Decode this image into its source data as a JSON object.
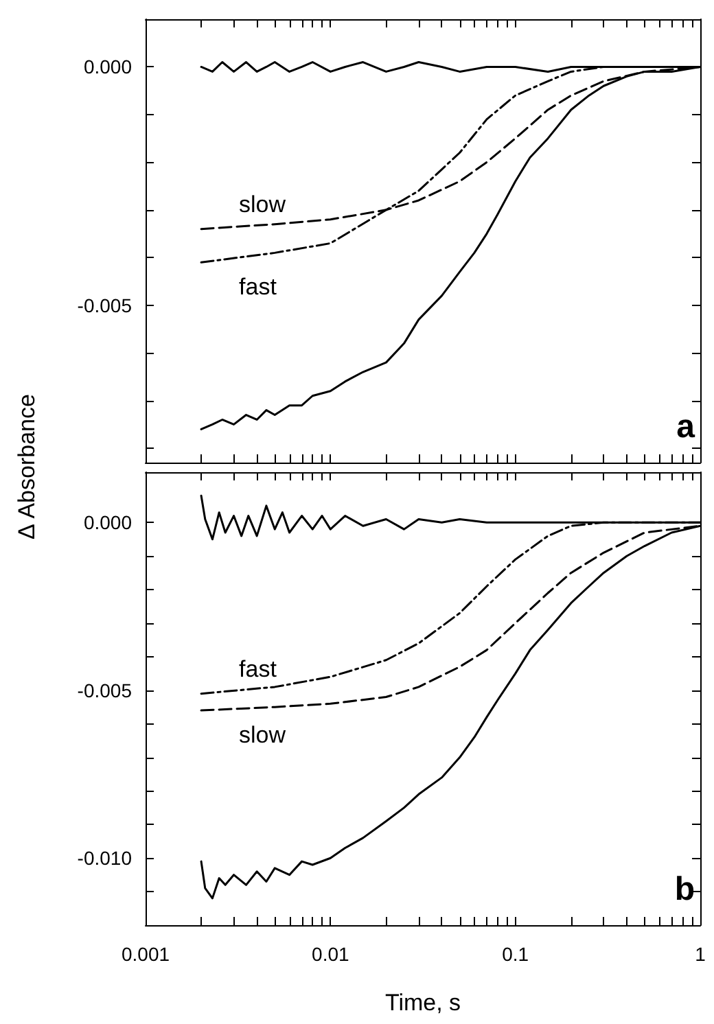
{
  "chart_data": [
    {
      "type": "line",
      "ylabel": "Δ Absorbance",
      "annotations": [
        "a"
      ],
      "log": "x",
      "tick_labels": "y",
      "legend": false,
      "grid": false,
      "marker": "none",
      "xlim": [
        0.001,
        1
      ],
      "xticks": [
        0.001,
        {
          "value": 0.002,
          "label": null
        },
        {
          "value": 0.003,
          "label": null
        },
        {
          "value": 0.004,
          "label": null
        },
        {
          "value": 0.005,
          "label": null
        },
        {
          "value": 0.006,
          "label": null
        },
        {
          "value": 0.007,
          "label": null
        },
        {
          "value": 0.008,
          "label": null
        },
        {
          "value": 0.009,
          "label": null
        },
        0.01,
        {
          "value": 0.02,
          "label": null
        },
        {
          "value": 0.03,
          "label": null
        },
        {
          "value": 0.04,
          "label": null
        },
        {
          "value": 0.05,
          "label": null
        },
        {
          "value": 0.06,
          "label": null
        },
        {
          "value": 0.07,
          "label": null
        },
        {
          "value": 0.08,
          "label": null
        },
        {
          "value": 0.09,
          "label": null
        },
        0.1,
        {
          "value": 0.2,
          "label": null
        },
        {
          "value": 0.3,
          "label": null
        },
        {
          "value": 0.4,
          "label": null
        },
        {
          "value": 0.5,
          "label": null
        },
        {
          "value": 0.6,
          "label": null
        },
        {
          "value": 0.7,
          "label": null
        },
        {
          "value": 0.8,
          "label": null
        },
        {
          "value": 0.9,
          "label": null
        },
        1
      ],
      "ylim": [
        -0.0083,
        0.001
      ],
      "yticks": [
        {
          "value": 0,
          "label": "0.000"
        },
        {
          "value": -0.001,
          "label": null
        },
        {
          "value": -0.002,
          "label": null
        },
        {
          "value": -0.003,
          "label": null
        },
        {
          "value": -0.004,
          "label": null
        },
        {
          "value": -0.005,
          "label": "-0.005"
        },
        {
          "value": -0.006,
          "label": null
        },
        {
          "value": -0.007,
          "label": null
        },
        {
          "value": -0.008,
          "label": null
        }
      ],
      "series": [
        {
          "color": "#000000",
          "line_style": "solid",
          "x": [
            0.002,
            0.0023,
            0.0026,
            0.003,
            0.0035,
            0.004,
            0.0045,
            0.005,
            0.006,
            0.007,
            0.008,
            0.01,
            0.012,
            0.015,
            0.02,
            0.025,
            0.03,
            0.04,
            0.05,
            0.07,
            0.1,
            0.15,
            0.2,
            0.3,
            0.5,
            1
          ],
          "values": [
            0,
            -0.0001,
            0.0001,
            -0.0001,
            0.0001,
            -0.0001,
            0,
            0.0001,
            -0.0001,
            0,
            0.0001,
            -0.0001,
            0,
            0.0001,
            -0.0001,
            0,
            0.0001,
            0,
            -0.0001,
            0,
            0,
            -0.0001,
            0,
            0,
            0,
            0
          ]
        },
        {
          "color": "#000000",
          "line_style": "solid",
          "x": [
            0.002,
            0.0023,
            0.0026,
            0.003,
            0.0035,
            0.004,
            0.0045,
            0.005,
            0.006,
            0.007,
            0.008,
            0.01,
            0.012,
            0.015,
            0.02,
            0.025,
            0.03,
            0.04,
            0.05,
            0.06,
            0.07,
            0.08,
            0.1,
            0.12,
            0.15,
            0.2,
            0.25,
            0.3,
            0.4,
            0.5,
            0.7,
            1
          ],
          "values": [
            -0.0076,
            -0.0075,
            -0.0074,
            -0.0075,
            -0.0073,
            -0.0074,
            -0.0072,
            -0.0073,
            -0.0071,
            -0.0071,
            -0.0069,
            -0.0068,
            -0.0066,
            -0.0064,
            -0.0062,
            -0.0058,
            -0.0053,
            -0.0048,
            -0.0043,
            -0.0039,
            -0.0035,
            -0.0031,
            -0.0024,
            -0.0019,
            -0.0015,
            -0.0009,
            -0.0006,
            -0.0004,
            -0.0002,
            -0.0001,
            -0.0001,
            0
          ]
        },
        {
          "name": "slow",
          "color": "#000000",
          "line_style": "dashed",
          "x": [
            0.002,
            0.005,
            0.01,
            0.02,
            0.03,
            0.05,
            0.07,
            0.1,
            0.15,
            0.2,
            0.3,
            0.5,
            1
          ],
          "values": [
            -0.0034,
            -0.0033,
            -0.0032,
            -0.003,
            -0.0028,
            -0.0024,
            -0.002,
            -0.0015,
            -0.0009,
            -0.0006,
            -0.0003,
            -0.0001,
            0
          ]
        },
        {
          "name": "fast",
          "color": "#000000",
          "line_style": "dashdot",
          "x": [
            0.002,
            0.005,
            0.01,
            0.02,
            0.03,
            0.05,
            0.07,
            0.1,
            0.15,
            0.2,
            0.3,
            0.5,
            1
          ],
          "values": [
            -0.0041,
            -0.0039,
            -0.0037,
            -0.003,
            -0.0026,
            -0.0018,
            -0.0011,
            -0.0006,
            -0.0003,
            -0.0001,
            0,
            0,
            0
          ]
        }
      ]
    },
    {
      "type": "line",
      "xlabel": "Time, s",
      "annotations": [
        "b"
      ],
      "log": "x",
      "legend": false,
      "grid": false,
      "marker": "none",
      "xlim": [
        0.001,
        1
      ],
      "xticks": [
        0.001,
        {
          "value": 0.002,
          "label": null
        },
        {
          "value": 0.003,
          "label": null
        },
        {
          "value": 0.004,
          "label": null
        },
        {
          "value": 0.005,
          "label": null
        },
        {
          "value": 0.006,
          "label": null
        },
        {
          "value": 0.007,
          "label": null
        },
        {
          "value": 0.008,
          "label": null
        },
        {
          "value": 0.009,
          "label": null
        },
        0.01,
        {
          "value": 0.02,
          "label": null
        },
        {
          "value": 0.03,
          "label": null
        },
        {
          "value": 0.04,
          "label": null
        },
        {
          "value": 0.05,
          "label": null
        },
        {
          "value": 0.06,
          "label": null
        },
        {
          "value": 0.07,
          "label": null
        },
        {
          "value": 0.08,
          "label": null
        },
        {
          "value": 0.09,
          "label": null
        },
        0.1,
        {
          "value": 0.2,
          "label": null
        },
        {
          "value": 0.3,
          "label": null
        },
        {
          "value": 0.4,
          "label": null
        },
        {
          "value": 0.5,
          "label": null
        },
        {
          "value": 0.6,
          "label": null
        },
        {
          "value": 0.7,
          "label": null
        },
        {
          "value": 0.8,
          "label": null
        },
        {
          "value": 0.9,
          "label": null
        },
        1
      ],
      "ylim": [
        -0.012,
        0.0015
      ],
      "yticks": [
        {
          "value": 0,
          "label": "0.000"
        },
        {
          "value": -0.001,
          "label": null
        },
        {
          "value": -0.002,
          "label": null
        },
        {
          "value": -0.003,
          "label": null
        },
        {
          "value": -0.004,
          "label": null
        },
        {
          "value": -0.005,
          "label": "-0.005"
        },
        {
          "value": -0.006,
          "label": null
        },
        {
          "value": -0.007,
          "label": null
        },
        {
          "value": -0.008,
          "label": null
        },
        {
          "value": -0.009,
          "label": null
        },
        {
          "value": -0.01,
          "label": "-0.010"
        },
        {
          "value": -0.011,
          "label": null
        }
      ],
      "series": [
        {
          "color": "#000000",
          "line_style": "solid",
          "x": [
            0.002,
            0.0021,
            0.0023,
            0.0025,
            0.0027,
            0.003,
            0.0033,
            0.0036,
            0.004,
            0.0045,
            0.005,
            0.0055,
            0.006,
            0.007,
            0.008,
            0.009,
            0.01,
            0.012,
            0.015,
            0.02,
            0.025,
            0.03,
            0.04,
            0.05,
            0.07,
            0.1,
            0.15,
            0.2,
            0.3,
            0.5,
            1
          ],
          "values": [
            0.0008,
            0.0001,
            -0.0005,
            0.0003,
            -0.0003,
            0.0002,
            -0.0004,
            0.0002,
            -0.0004,
            0.0005,
            -0.0002,
            0.0003,
            -0.0003,
            0.0002,
            -0.0002,
            0.0002,
            -0.0002,
            0.0002,
            -0.0001,
            0.0001,
            -0.0002,
            0.0001,
            0,
            0.0001,
            0,
            0,
            0,
            0,
            0,
            0,
            0
          ]
        },
        {
          "color": "#000000",
          "line_style": "solid",
          "x": [
            0.002,
            0.0021,
            0.0023,
            0.0025,
            0.0027,
            0.003,
            0.0035,
            0.004,
            0.0045,
            0.005,
            0.006,
            0.007,
            0.008,
            0.01,
            0.012,
            0.015,
            0.02,
            0.025,
            0.03,
            0.04,
            0.05,
            0.06,
            0.07,
            0.08,
            0.1,
            0.12,
            0.15,
            0.2,
            0.25,
            0.3,
            0.4,
            0.5,
            0.7,
            1
          ],
          "values": [
            -0.0101,
            -0.0109,
            -0.0112,
            -0.0106,
            -0.0108,
            -0.0105,
            -0.0108,
            -0.0104,
            -0.0107,
            -0.0103,
            -0.0105,
            -0.0101,
            -0.0102,
            -0.01,
            -0.0097,
            -0.0094,
            -0.0089,
            -0.0085,
            -0.0081,
            -0.0076,
            -0.007,
            -0.0064,
            -0.0058,
            -0.0053,
            -0.0045,
            -0.0038,
            -0.0032,
            -0.0024,
            -0.0019,
            -0.0015,
            -0.001,
            -0.0007,
            -0.0003,
            -0.0001
          ]
        },
        {
          "name": "fast",
          "color": "#000000",
          "line_style": "dashdot",
          "x": [
            0.002,
            0.005,
            0.01,
            0.02,
            0.03,
            0.05,
            0.07,
            0.1,
            0.15,
            0.2,
            0.3,
            0.5,
            1
          ],
          "values": [
            -0.0051,
            -0.0049,
            -0.0046,
            -0.0041,
            -0.0036,
            -0.0027,
            -0.0019,
            -0.0011,
            -0.0004,
            -0.0001,
            0,
            0,
            0
          ]
        },
        {
          "name": "slow",
          "color": "#000000",
          "line_style": "dashed",
          "x": [
            0.002,
            0.005,
            0.01,
            0.02,
            0.03,
            0.05,
            0.07,
            0.1,
            0.15,
            0.2,
            0.3,
            0.5,
            1
          ],
          "values": [
            -0.0056,
            -0.0055,
            -0.0054,
            -0.0052,
            -0.0049,
            -0.0043,
            -0.0038,
            -0.003,
            -0.0021,
            -0.0015,
            -0.0009,
            -0.0003,
            -0.0001
          ]
        }
      ]
    }
  ]
}
